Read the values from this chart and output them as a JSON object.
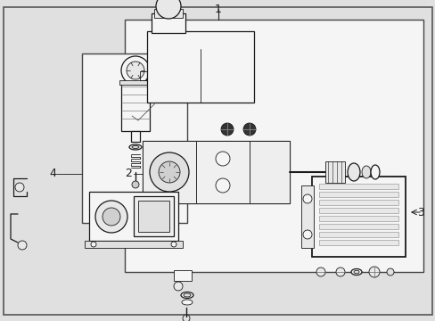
{
  "bg_color": "#e0e0e0",
  "white_box": "#f5f5f5",
  "line_color": "#1a1a1a",
  "label_color": "#111111",
  "label_1": "1",
  "label_2": "2",
  "label_3": "3",
  "label_4": "4",
  "figsize": [
    4.89,
    3.6
  ],
  "dpi": 100
}
